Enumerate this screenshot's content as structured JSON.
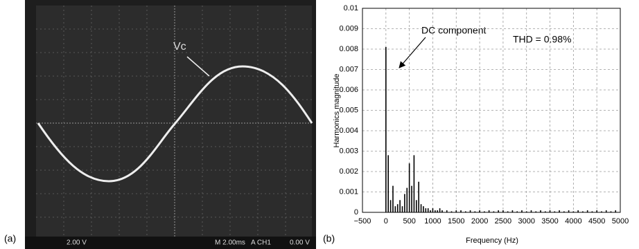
{
  "panel_labels": [
    "(a)",
    "(b)"
  ],
  "oscilloscope": {
    "signal_label": "Vc",
    "volts_per_div": "2.00 V",
    "time_base": "M 2.00ms",
    "trigger": "A CH1",
    "trigger_level": "0.00 V"
  },
  "chart_data": {
    "type": "stem",
    "x_label": "Frequency (Hz)",
    "y_label": "Harmonics magnitude",
    "annotations": [
      "DC component",
      "THD = 0.98%"
    ],
    "color": "#000000",
    "grid": true,
    "xlim": [
      -500,
      5000
    ],
    "xticks": [
      {
        "value": -500,
        "label": "−500"
      },
      0,
      500,
      1000,
      1500,
      2000,
      2500,
      3000,
      3500,
      4000,
      4500,
      5000
    ],
    "ylim": [
      0,
      0.01
    ],
    "yticks": [
      0,
      0.001,
      0.002,
      0.003,
      0.004,
      0.005,
      0.006,
      0.007,
      0.008,
      0.009,
      0.01
    ],
    "x": [
      0,
      50,
      100,
      150,
      200,
      250,
      300,
      350,
      400,
      450,
      500,
      550,
      600,
      650,
      700,
      750,
      800,
      850,
      900,
      950,
      1000,
      1050,
      1100,
      1150,
      1200,
      1300,
      1400,
      1500,
      1600,
      1700,
      1800,
      1900,
      2000,
      2100,
      2200,
      2300,
      2400,
      2500,
      2600,
      2700,
      2800,
      2900,
      3000,
      3100,
      3200,
      3300,
      3400,
      3500,
      3600,
      3700,
      3800,
      3900,
      4000,
      4100,
      4200,
      4300,
      4400,
      4500,
      4600,
      4700,
      4800,
      4900
    ],
    "values": [
      0.0081,
      0.0028,
      0.0006,
      0.0013,
      0.0003,
      0.0004,
      0.0006,
      0.0003,
      0.0009,
      0.0012,
      0.0024,
      0.0013,
      0.0028,
      0.0006,
      0.0015,
      0.0004,
      0.0003,
      0.0002,
      0.0002,
      0.0001,
      0.0002,
      0.0001,
      0.0001,
      0.0002,
      0.0001,
      0.0001,
      5e-05,
      0.0001,
      0.0001,
      5e-05,
      0.0001,
      5e-05,
      0.0001,
      5e-05,
      0.0001,
      5e-05,
      0.0001,
      0.0001,
      5e-05,
      0.0001,
      5e-05,
      0.0001,
      5e-05,
      0.0001,
      5e-05,
      0.0001,
      5e-05,
      0.0001,
      5e-05,
      0.0001,
      5e-05,
      0.0001,
      5e-05,
      0.0001,
      5e-05,
      0.0001,
      5e-05,
      0.0001,
      5e-05,
      0.0001,
      5e-05,
      0.0001
    ]
  }
}
